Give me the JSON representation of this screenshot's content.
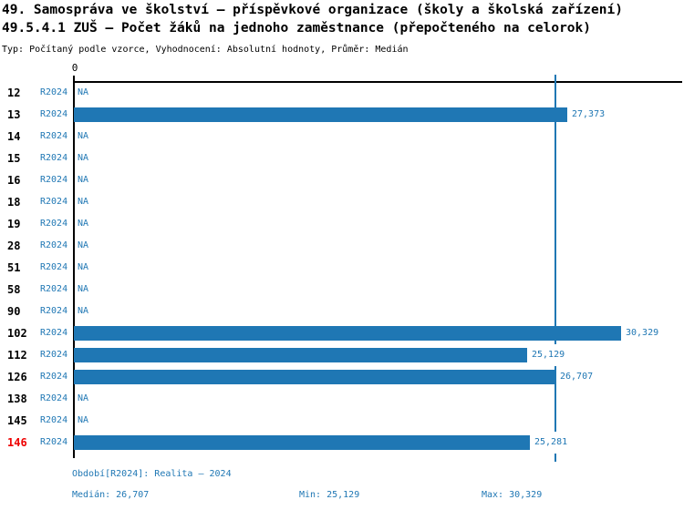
{
  "header": {
    "title_line1": "49. Samospráva ve školství – příspěvkové organizace (školy a školská zařízení)",
    "title_line2": "49.5.4.1 ZUŠ – Počet žáků na jednoho zaměstnance (přepočteného na celorok)",
    "subtitle": "Typ: Počítaný podle vzorce, Vyhodnocení: Absolutní hodnoty, Průměr: Medián"
  },
  "chart_data": {
    "type": "bar",
    "orientation": "horizontal",
    "title": "49.5.4.1 ZUŠ – Počet žáků na jednoho zaměstnance (přepočteného na celorok)",
    "axis_zero_label": "0",
    "xlim": [
      0,
      33.8
    ],
    "grid": false,
    "bar_color": "#1f77b4",
    "median_line_color": "#1f77b4",
    "label_color": "#1f77b4",
    "highlight_color": "#ee0000",
    "highlight_category": "146",
    "median_line_value": 26.707,
    "categories": [
      "12",
      "13",
      "14",
      "15",
      "16",
      "18",
      "19",
      "28",
      "51",
      "58",
      "90",
      "102",
      "112",
      "126",
      "138",
      "145",
      "146"
    ],
    "rows": [
      {
        "label": "12",
        "period": "R2024",
        "value": null,
        "display": "NA"
      },
      {
        "label": "13",
        "period": "R2024",
        "value": 27.373,
        "display": "27,373"
      },
      {
        "label": "14",
        "period": "R2024",
        "value": null,
        "display": "NA"
      },
      {
        "label": "15",
        "period": "R2024",
        "value": null,
        "display": "NA"
      },
      {
        "label": "16",
        "period": "R2024",
        "value": null,
        "display": "NA"
      },
      {
        "label": "18",
        "period": "R2024",
        "value": null,
        "display": "NA"
      },
      {
        "label": "19",
        "period": "R2024",
        "value": null,
        "display": "NA"
      },
      {
        "label": "28",
        "period": "R2024",
        "value": null,
        "display": "NA"
      },
      {
        "label": "51",
        "period": "R2024",
        "value": null,
        "display": "NA"
      },
      {
        "label": "58",
        "period": "R2024",
        "value": null,
        "display": "NA"
      },
      {
        "label": "90",
        "period": "R2024",
        "value": null,
        "display": "NA"
      },
      {
        "label": "102",
        "period": "R2024",
        "value": 30.329,
        "display": "30,329"
      },
      {
        "label": "112",
        "period": "R2024",
        "value": 25.129,
        "display": "25,129"
      },
      {
        "label": "126",
        "period": "R2024",
        "value": 26.707,
        "display": "26,707"
      },
      {
        "label": "138",
        "period": "R2024",
        "value": null,
        "display": "NA"
      },
      {
        "label": "145",
        "period": "R2024",
        "value": null,
        "display": "NA"
      },
      {
        "label": "146",
        "period": "R2024",
        "value": 25.281,
        "display": "25,281"
      }
    ],
    "stats": {
      "median": 26.707,
      "min": 25.129,
      "max": 30.329
    }
  },
  "footer": {
    "period_info": "Období[R2024]: Realita – 2024",
    "median": "Medián: 26,707",
    "min": "Min: 25,129",
    "max": "Max: 30,329"
  }
}
